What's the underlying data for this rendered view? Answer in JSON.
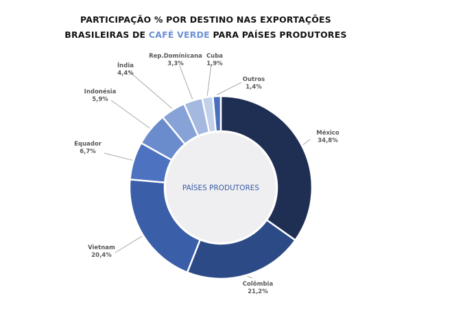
{
  "title": {
    "line1": "PARTICIPAÇÃO % POR DESTINO NAS EXPORTAÇÕES",
    "line2_prefix": "BRASILEIRAS DE ",
    "line2_highlight": "CAFÉ VERDE",
    "line2_suffix": " PARA PAÍSES PRODUTORES"
  },
  "center_label": "PAÍSES PRODUTORES",
  "colors": {
    "title": "#111111",
    "title_accent": "#6b8fd3",
    "label": "#595959",
    "center_text": "#3a5ba5",
    "center_fill": "#efeff1"
  },
  "chart_data": {
    "type": "pie",
    "variant": "donut",
    "title": "PARTICIPAÇÃO % POR DESTINO NAS EXPORTAÇÕES BRASILEIRAS DE CAFÉ VERDE PARA PAÍSES PRODUTORES",
    "center_text": "PAÍSES PRODUTORES",
    "slices": [
      {
        "name": "México",
        "value": 34.8,
        "value_label": "34,8%",
        "color": "#1f2f54"
      },
      {
        "name": "Colômbia",
        "value": 21.2,
        "value_label": "21,2%",
        "color": "#2c4a86"
      },
      {
        "name": "Vietnam",
        "value": 20.4,
        "value_label": "20,4%",
        "color": "#3a5ea8"
      },
      {
        "name": "Equador",
        "value": 6.7,
        "value_label": "6,7%",
        "color": "#4d73c0"
      },
      {
        "name": "Indonésia",
        "value": 5.9,
        "value_label": "5,9%",
        "color": "#6a8bcc"
      },
      {
        "name": "Índia",
        "value": 4.4,
        "value_label": "4,4%",
        "color": "#87a2d6"
      },
      {
        "name": "Rep.Domínicana",
        "value": 3.3,
        "value_label": "3,3%",
        "color": "#a4b8e0"
      },
      {
        "name": "Cuba",
        "value": 1.9,
        "value_label": "1,9%",
        "color": "#c3d0ea"
      },
      {
        "name": "Outros",
        "value": 1.4,
        "value_label": "1,4%",
        "color": "#4a70bd"
      }
    ]
  }
}
